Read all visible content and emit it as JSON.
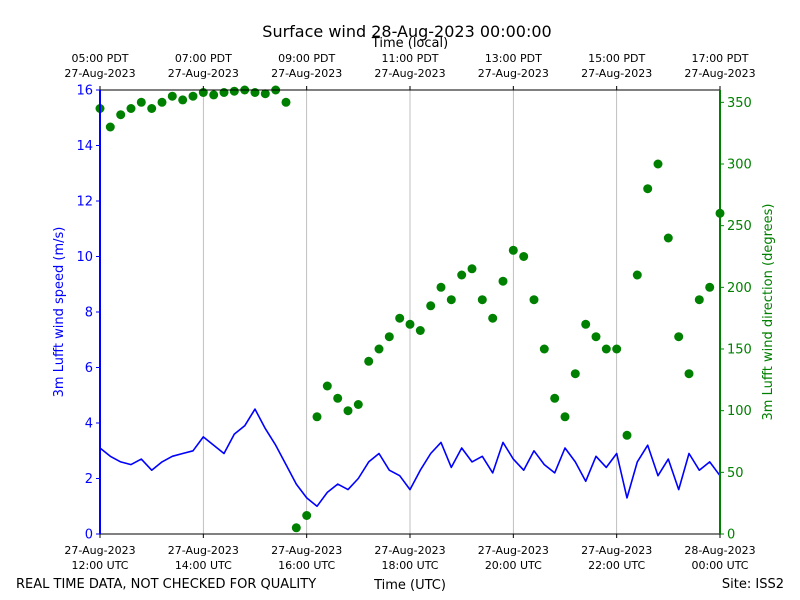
{
  "chart_data": {
    "type": "line+scatter",
    "title": "Surface wind 28-Aug-2023 00:00:00",
    "top_axis_label": "Time (local)",
    "xlabel": "Time (UTC)",
    "ylabel_left": "3m Lufft wind speed (m/s)",
    "ylabel_right": "3m Lufft wind direction (degrees)",
    "footer_left": "REAL TIME DATA, NOT CHECKED FOR QUALITY",
    "footer_right": "Site: ISS2",
    "xlim_hours_utc": [
      12,
      24
    ],
    "ylim_left": [
      0,
      16
    ],
    "ylim_right": [
      0,
      360
    ],
    "left_ticks": [
      0,
      2,
      4,
      6,
      8,
      10,
      12,
      14,
      16
    ],
    "right_ticks": [
      0,
      50,
      100,
      150,
      200,
      250,
      300,
      350
    ],
    "bottom_ticks": [
      {
        "hour": 12,
        "l1": "27-Aug-2023",
        "l2": "12:00 UTC"
      },
      {
        "hour": 14,
        "l1": "27-Aug-2023",
        "l2": "14:00 UTC"
      },
      {
        "hour": 16,
        "l1": "27-Aug-2023",
        "l2": "16:00 UTC"
      },
      {
        "hour": 18,
        "l1": "27-Aug-2023",
        "l2": "18:00 UTC"
      },
      {
        "hour": 20,
        "l1": "27-Aug-2023",
        "l2": "20:00 UTC"
      },
      {
        "hour": 22,
        "l1": "27-Aug-2023",
        "l2": "22:00 UTC"
      },
      {
        "hour": 24,
        "l1": "28-Aug-2023",
        "l2": "00:00 UTC"
      }
    ],
    "top_ticks": [
      {
        "hour": 12,
        "l1": "05:00 PDT",
        "l2": "27-Aug-2023"
      },
      {
        "hour": 14,
        "l1": "07:00 PDT",
        "l2": "27-Aug-2023"
      },
      {
        "hour": 16,
        "l1": "09:00 PDT",
        "l2": "27-Aug-2023"
      },
      {
        "hour": 18,
        "l1": "11:00 PDT",
        "l2": "27-Aug-2023"
      },
      {
        "hour": 20,
        "l1": "13:00 PDT",
        "l2": "27-Aug-2023"
      },
      {
        "hour": 22,
        "l1": "15:00 PDT",
        "l2": "27-Aug-2023"
      },
      {
        "hour": 24,
        "l1": "17:00 PDT",
        "l2": "27-Aug-2023"
      }
    ],
    "series": [
      {
        "name": "wind_speed",
        "axis": "left",
        "style": "line",
        "color": "#0000ff",
        "x_hours": [
          12.0,
          12.2,
          12.4,
          12.6,
          12.8,
          13.0,
          13.2,
          13.4,
          13.6,
          13.8,
          14.0,
          14.2,
          14.4,
          14.6,
          14.8,
          15.0,
          15.2,
          15.4,
          15.6,
          15.8,
          16.0,
          16.2,
          16.4,
          16.6,
          16.8,
          17.0,
          17.2,
          17.4,
          17.6,
          17.8,
          18.0,
          18.2,
          18.4,
          18.6,
          18.8,
          19.0,
          19.2,
          19.4,
          19.6,
          19.8,
          20.0,
          20.2,
          20.4,
          20.6,
          20.8,
          21.0,
          21.2,
          21.4,
          21.6,
          21.8,
          22.0,
          22.2,
          22.4,
          22.6,
          22.8,
          23.0,
          23.2,
          23.4,
          23.6,
          23.8,
          24.0
        ],
        "values": [
          3.1,
          2.8,
          2.6,
          2.5,
          2.7,
          2.3,
          2.6,
          2.8,
          2.9,
          3.0,
          3.5,
          3.2,
          2.9,
          3.6,
          3.9,
          4.5,
          3.8,
          3.2,
          2.5,
          1.8,
          1.3,
          1.0,
          1.5,
          1.8,
          1.6,
          2.0,
          2.6,
          2.9,
          2.3,
          2.1,
          1.6,
          2.3,
          2.9,
          3.3,
          2.4,
          3.1,
          2.6,
          2.8,
          2.2,
          3.3,
          2.7,
          2.3,
          3.0,
          2.5,
          2.2,
          3.1,
          2.6,
          1.9,
          2.8,
          2.4,
          2.9,
          1.3,
          2.6,
          3.2,
          2.1,
          2.7,
          1.6,
          2.9,
          2.3,
          2.6,
          2.1
        ]
      },
      {
        "name": "wind_direction",
        "axis": "right",
        "style": "scatter",
        "color": "#008000",
        "x_hours": [
          12.0,
          12.2,
          12.4,
          12.6,
          12.8,
          13.0,
          13.2,
          13.4,
          13.6,
          13.8,
          14.0,
          14.2,
          14.4,
          14.6,
          14.8,
          15.0,
          15.2,
          15.4,
          15.6,
          15.8,
          16.0,
          16.2,
          16.4,
          16.6,
          16.8,
          17.0,
          17.2,
          17.4,
          17.6,
          17.8,
          18.0,
          18.2,
          18.4,
          18.6,
          18.8,
          19.0,
          19.2,
          19.4,
          19.6,
          19.8,
          20.0,
          20.2,
          20.4,
          20.6,
          20.8,
          21.0,
          21.2,
          21.4,
          21.6,
          21.8,
          22.0,
          22.2,
          22.4,
          22.6,
          22.8,
          23.0,
          23.2,
          23.4,
          23.6,
          23.8,
          24.0
        ],
        "values": [
          345,
          330,
          340,
          345,
          350,
          345,
          350,
          355,
          352,
          355,
          358,
          356,
          358,
          359,
          360,
          358,
          357,
          360,
          350,
          5,
          15,
          95,
          120,
          110,
          100,
          105,
          140,
          150,
          160,
          175,
          170,
          165,
          185,
          200,
          190,
          210,
          215,
          190,
          175,
          205,
          230,
          225,
          190,
          150,
          110,
          95,
          130,
          170,
          160,
          150,
          150,
          80,
          210,
          280,
          300,
          240,
          160,
          130,
          190,
          200,
          260
        ]
      }
    ]
  }
}
